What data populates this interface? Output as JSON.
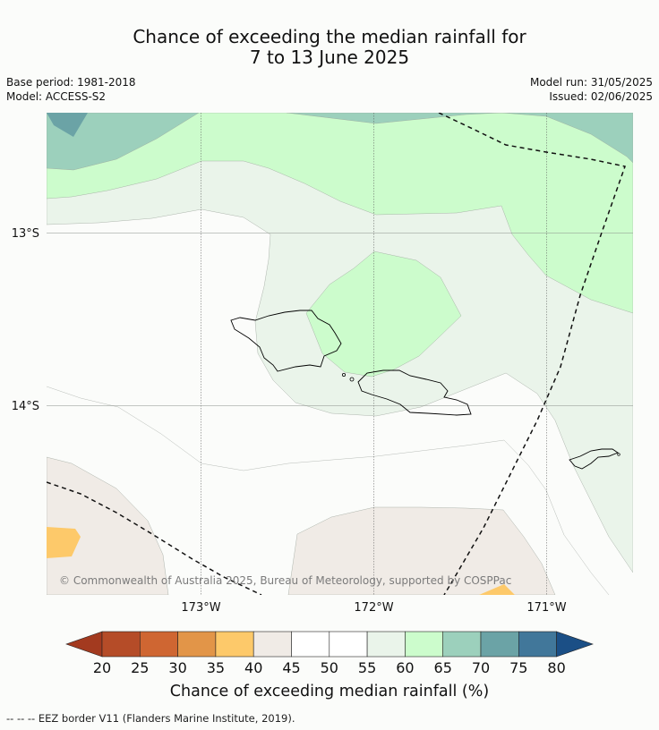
{
  "header": {
    "title_line1": "Chance of exceeding the median rainfall for",
    "title_line2": "7 to 13 June 2025",
    "base_period": "Base period: 1981-2018",
    "model": "Model: ACCESS-S2",
    "model_run": "Model run: 31/05/2025",
    "issued": "Issued: 02/06/2025"
  },
  "map": {
    "lat_labels": [
      "13°S",
      "14°S"
    ],
    "lon_labels": [
      "173°W",
      "172°W",
      "171°W"
    ],
    "attribution": "© Commonwealth of Australia 2025, Bureau of Meteorology, supported by COSPPac",
    "colors": {
      "c20": "#a33a1f",
      "c25": "#b54c28",
      "c30": "#cf6632",
      "c35": "#e29548",
      "c40": "#fdc96a",
      "c45": "#f0ebe6",
      "c50": "#fbfcfa",
      "c55": "#ffffff",
      "c60": "#eaf4ea",
      "c65": "#ccfccc",
      "c70": "#9cd0bc",
      "c75": "#6ba3a6",
      "c80": "#41779a",
      "over": "#1b4f86"
    }
  },
  "colorbar": {
    "ticks": [
      "20",
      "25",
      "30",
      "35",
      "40",
      "45",
      "50",
      "55",
      "60",
      "65",
      "70",
      "75",
      "80"
    ],
    "label": "Chance of exceeding median rainfall (%)"
  },
  "footnote": "--  --  -- EEZ border V11 (Flanders Marine Institute, 2019)."
}
